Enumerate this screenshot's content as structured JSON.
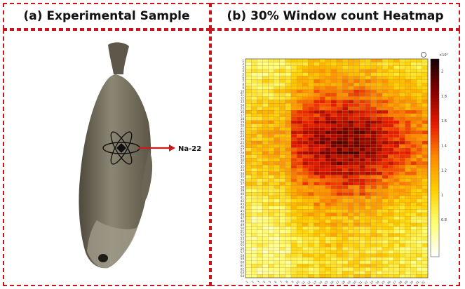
{
  "panel_a": {
    "title": "(a) Experimental Sample",
    "source_label": "Na-22"
  },
  "panel_b": {
    "title": "(b) 30% Window count Heatmap"
  },
  "chart_data": {
    "type": "heatmap",
    "rows": 64,
    "cols": 32,
    "colorbar": {
      "min": 0.5,
      "max": 2.1,
      "multiplier": "×10⁴",
      "ticks": [
        "2",
        "1.8",
        "1.6",
        "1.4",
        "1.2",
        "1",
        "0.8"
      ]
    },
    "colors": [
      "#ffffff",
      "#ffff70",
      "#ffd000",
      "#ff8c00",
      "#e81c00",
      "#8a0000",
      "#1a0000"
    ]
  }
}
